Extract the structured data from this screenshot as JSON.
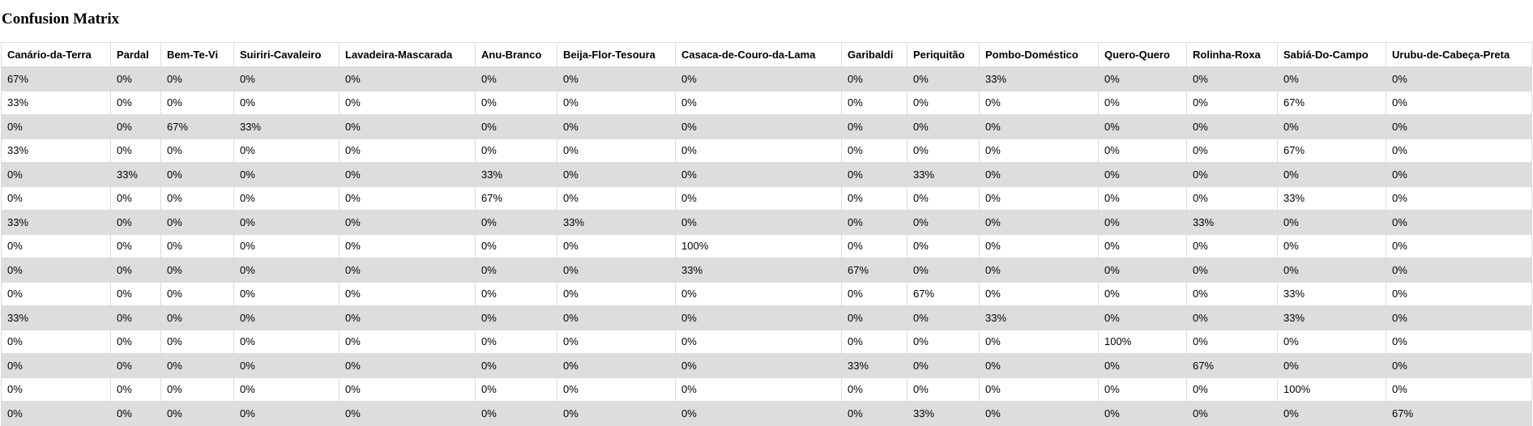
{
  "page_title": "Confusion Matrix",
  "columns": [
    "Canário-da-Terra",
    "Pardal",
    "Bem-Te-Vi",
    "Suiriri-Cavaleiro",
    "Lavadeira-Mascarada",
    "Anu-Branco",
    "Beija-Flor-Tesoura",
    "Casaca-de-Couro-da-Lama",
    "Garibaldi",
    "Periquitão",
    "Pombo-Doméstico",
    "Quero-Quero",
    "Rolinha-Roxa",
    "Sabiá-Do-Campo",
    "Urubu-de-Cabeça-Preta"
  ],
  "rows": [
    [
      "67%",
      "0%",
      "0%",
      "0%",
      "0%",
      "0%",
      "0%",
      "0%",
      "0%",
      "0%",
      "33%",
      "0%",
      "0%",
      "0%",
      "0%"
    ],
    [
      "33%",
      "0%",
      "0%",
      "0%",
      "0%",
      "0%",
      "0%",
      "0%",
      "0%",
      "0%",
      "0%",
      "0%",
      "0%",
      "67%",
      "0%"
    ],
    [
      "0%",
      "0%",
      "67%",
      "33%",
      "0%",
      "0%",
      "0%",
      "0%",
      "0%",
      "0%",
      "0%",
      "0%",
      "0%",
      "0%",
      "0%"
    ],
    [
      "33%",
      "0%",
      "0%",
      "0%",
      "0%",
      "0%",
      "0%",
      "0%",
      "0%",
      "0%",
      "0%",
      "0%",
      "0%",
      "67%",
      "0%"
    ],
    [
      "0%",
      "33%",
      "0%",
      "0%",
      "0%",
      "33%",
      "0%",
      "0%",
      "0%",
      "33%",
      "0%",
      "0%",
      "0%",
      "0%",
      "0%"
    ],
    [
      "0%",
      "0%",
      "0%",
      "0%",
      "0%",
      "67%",
      "0%",
      "0%",
      "0%",
      "0%",
      "0%",
      "0%",
      "0%",
      "33%",
      "0%"
    ],
    [
      "33%",
      "0%",
      "0%",
      "0%",
      "0%",
      "0%",
      "33%",
      "0%",
      "0%",
      "0%",
      "0%",
      "0%",
      "33%",
      "0%",
      "0%"
    ],
    [
      "0%",
      "0%",
      "0%",
      "0%",
      "0%",
      "0%",
      "0%",
      "100%",
      "0%",
      "0%",
      "0%",
      "0%",
      "0%",
      "0%",
      "0%"
    ],
    [
      "0%",
      "0%",
      "0%",
      "0%",
      "0%",
      "0%",
      "0%",
      "33%",
      "67%",
      "0%",
      "0%",
      "0%",
      "0%",
      "0%",
      "0%"
    ],
    [
      "0%",
      "0%",
      "0%",
      "0%",
      "0%",
      "0%",
      "0%",
      "0%",
      "0%",
      "67%",
      "0%",
      "0%",
      "0%",
      "33%",
      "0%"
    ],
    [
      "33%",
      "0%",
      "0%",
      "0%",
      "0%",
      "0%",
      "0%",
      "0%",
      "0%",
      "0%",
      "33%",
      "0%",
      "0%",
      "33%",
      "0%"
    ],
    [
      "0%",
      "0%",
      "0%",
      "0%",
      "0%",
      "0%",
      "0%",
      "0%",
      "0%",
      "0%",
      "0%",
      "100%",
      "0%",
      "0%",
      "0%"
    ],
    [
      "0%",
      "0%",
      "0%",
      "0%",
      "0%",
      "0%",
      "0%",
      "0%",
      "33%",
      "0%",
      "0%",
      "0%",
      "67%",
      "0%",
      "0%"
    ],
    [
      "0%",
      "0%",
      "0%",
      "0%",
      "0%",
      "0%",
      "0%",
      "0%",
      "0%",
      "0%",
      "0%",
      "0%",
      "0%",
      "100%",
      "0%"
    ],
    [
      "0%",
      "0%",
      "0%",
      "0%",
      "0%",
      "0%",
      "0%",
      "0%",
      "0%",
      "33%",
      "0%",
      "0%",
      "0%",
      "0%",
      "67%"
    ]
  ],
  "colors": {
    "row_stripe": "#dddddd",
    "row_plain": "#ffffff",
    "cell_border": "#dcdcdc"
  }
}
